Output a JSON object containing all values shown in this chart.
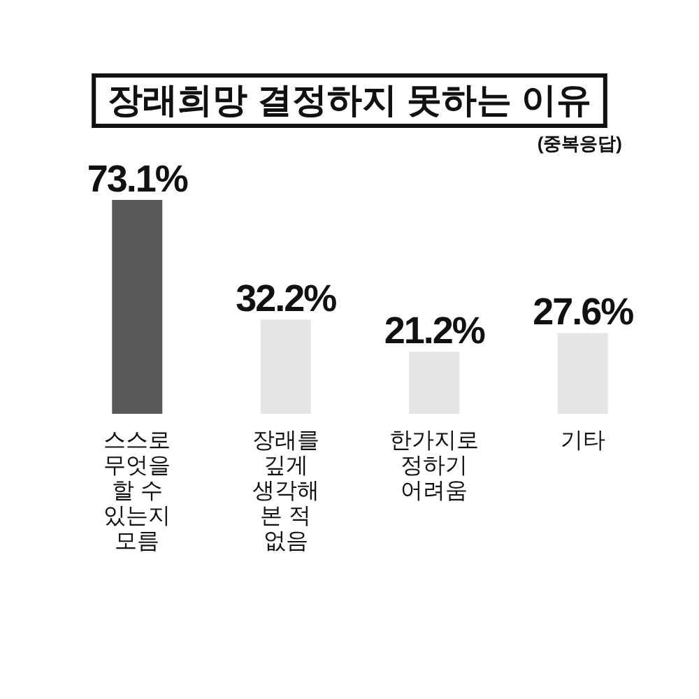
{
  "chart_data": {
    "type": "bar",
    "title": "장래희망 결정하지 못하는 이유",
    "subtitle": "(중복응답)",
    "categories": [
      "스스로 무엇을 할 수 있는지 모름",
      "장래를 깊게 생각해 본 적 없음",
      "한가지로 정하기 어려움",
      "기타"
    ],
    "values": [
      73.1,
      32.2,
      21.2,
      27.6
    ],
    "colors": [
      "#595959",
      "#e6e6e6",
      "#e6e6e6",
      "#e6e6e6"
    ],
    "value_labels": [
      "73.1%",
      "32.2%",
      "21.2%",
      "27.6%"
    ]
  }
}
